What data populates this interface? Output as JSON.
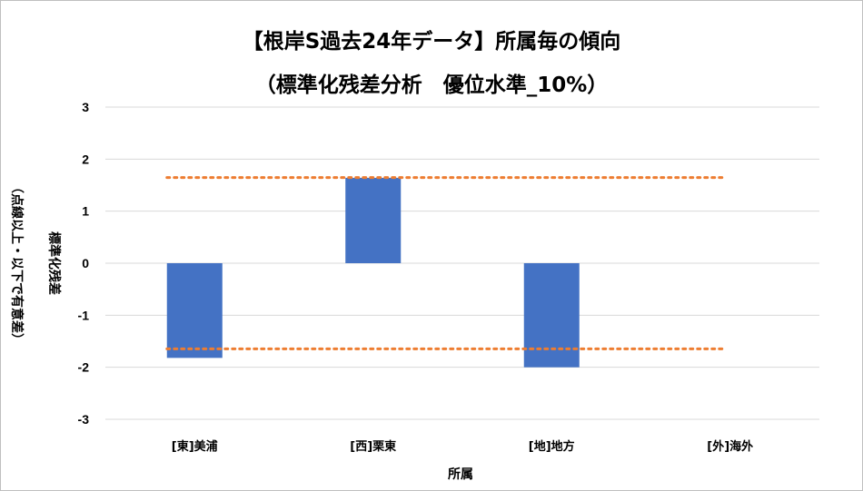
{
  "chart_data": {
    "type": "bar",
    "title": "【根岸S過去24年データ】所属毎の傾向",
    "subtitle": "（標準化残差分析　優位水準_10%）",
    "categories": [
      "[東]美浦",
      "[西]栗東",
      "[地]地方",
      "[外]海外"
    ],
    "values": [
      -1.82,
      1.64,
      -2.0,
      0
    ],
    "xlabel": "所属",
    "ylabel_lines": [
      "標準化残差",
      "（点線以上・以下で有意差）"
    ],
    "ylim": [
      -3,
      3
    ],
    "yticks": [
      "3",
      "2",
      "1",
      "0",
      "-1",
      "-2",
      "-3"
    ],
    "reference_lines": [
      1.645,
      -1.645
    ],
    "grid": true,
    "colors": {
      "bar": "#4472c4",
      "reference_line": "#ed7d31",
      "grid": "#d9d9d9"
    }
  }
}
